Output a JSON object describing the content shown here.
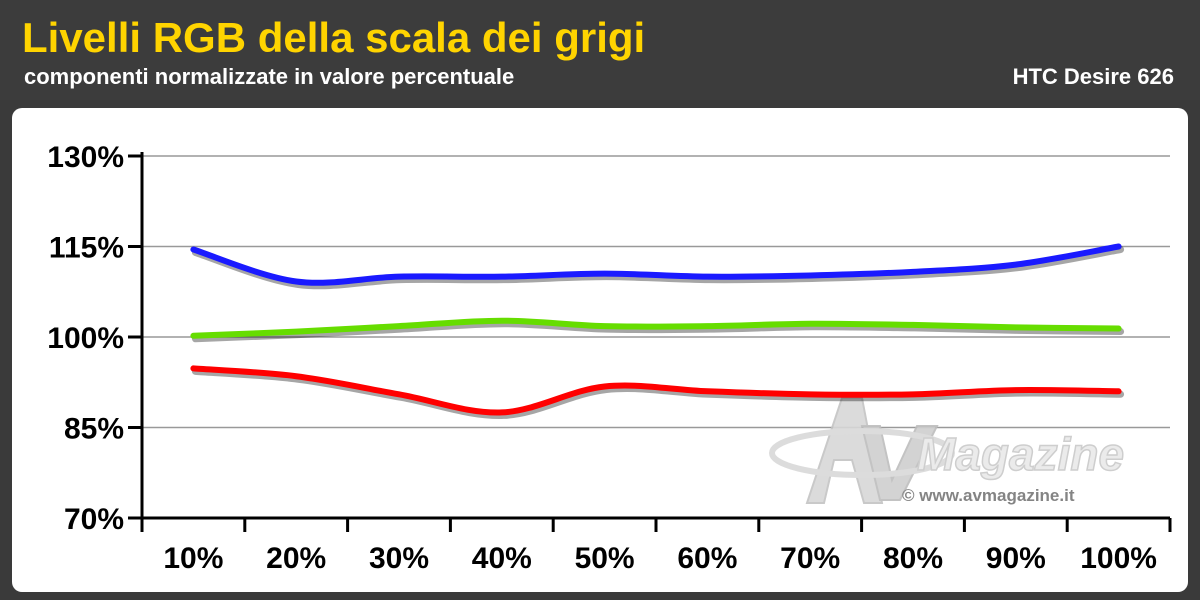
{
  "header": {
    "title": "Livelli RGB della scala dei grigi",
    "subtitle": "componenti normalizzate in valore percentuale",
    "device": "HTC Desire 626"
  },
  "watermark": {
    "logo_text": "Magazine",
    "url": "© www.avmagazine.it"
  },
  "colors": {
    "title": "#ffd400",
    "header_bg": "#3c3c3c",
    "blue": "#1a1aff",
    "green": "#66dd00",
    "red": "#ff0000",
    "grid": "#999999"
  },
  "chart_data": {
    "type": "line",
    "title": "Livelli RGB della scala dei grigi",
    "subtitle": "componenti normalizzate in valore percentuale",
    "categories": [
      "10%",
      "20%",
      "30%",
      "40%",
      "50%",
      "60%",
      "70%",
      "80%",
      "90%",
      "100%"
    ],
    "y_ticks": [
      "130%",
      "115%",
      "100%",
      "85%",
      "70%"
    ],
    "ylim": [
      70,
      130
    ],
    "grid": true,
    "legend": "none",
    "series": [
      {
        "color": "#1a1aff",
        "values": [
          114.5,
          109.2,
          110.0,
          110.0,
          110.5,
          110.0,
          110.2,
          110.8,
          112.0,
          115.0
        ]
      },
      {
        "color": "#66dd00",
        "values": [
          100.2,
          100.9,
          101.8,
          102.7,
          101.8,
          101.8,
          102.2,
          102.0,
          101.6,
          101.4
        ]
      },
      {
        "color": "#ff0000",
        "values": [
          94.8,
          93.5,
          90.5,
          87.5,
          91.8,
          91.0,
          90.5,
          90.5,
          91.2,
          91.0
        ]
      }
    ]
  }
}
